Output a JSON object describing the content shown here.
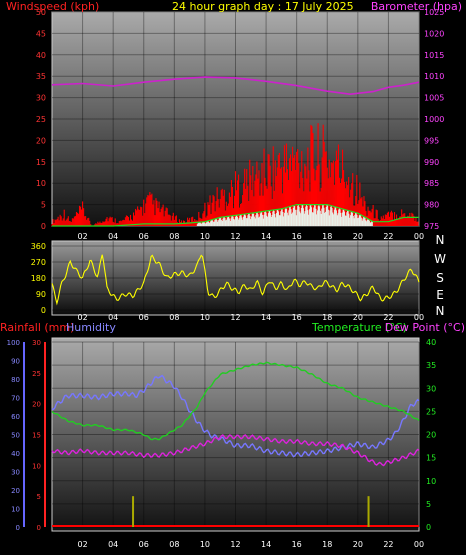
{
  "chart_data": [
    {
      "type": "line",
      "title": "24 hour graph day : 17 July 2025",
      "ylabel_left": "Windspeed (kph)",
      "ylabel_right": "Barometer (hpa)",
      "ylim_left": [
        0,
        50
      ],
      "ylim_right": [
        975,
        1025
      ],
      "yticks_left": [
        "0",
        "5",
        "10",
        "15",
        "20",
        "25",
        "30",
        "35",
        "40",
        "45",
        "50"
      ],
      "yticks_right": [
        "975",
        "980",
        "985",
        "990",
        "995",
        "1000",
        "1005",
        "1010",
        "1015",
        "1020",
        "1025"
      ],
      "xticks": [
        "02",
        "04",
        "06",
        "08",
        "10",
        "12",
        "14",
        "16",
        "18",
        "20",
        "22",
        "00"
      ],
      "colors": {
        "wind_gust": "#ff0000",
        "wind_avg": "#22dd22",
        "wind_bar": "#e8f0e8",
        "barometer": "#cc22cc"
      },
      "series": [
        {
          "key": "barometer",
          "axis": "right",
          "x": [
            0,
            2,
            4,
            6,
            8,
            10,
            12,
            14,
            16,
            18,
            19.5,
            21,
            22,
            23,
            24
          ],
          "values": [
            1008,
            1008.3,
            1007.7,
            1008.6,
            1009.3,
            1009.8,
            1009.6,
            1008.8,
            1007.8,
            1006.5,
            1005.8,
            1006.4,
            1007.4,
            1007.9,
            1008.6
          ]
        },
        {
          "key": "wind_gust",
          "axis": "left",
          "x": [
            0,
            0.8,
            1.2,
            2,
            2.6,
            3.6,
            4.5,
            5.5,
            6.3,
            7.5,
            8.5,
            9.5,
            10.5,
            11.5,
            12.5,
            13.5,
            14.5,
            15.5,
            16.5,
            17.5,
            18.5,
            19.5,
            20.5,
            21.5,
            22.5,
            23.5,
            24
          ],
          "values": [
            1,
            3,
            1,
            4,
            0,
            2,
            1,
            3,
            6,
            3,
            1,
            2,
            6,
            8,
            10,
            12,
            14,
            15,
            16,
            17,
            15,
            12,
            5,
            2,
            3,
            3,
            1
          ]
        },
        {
          "key": "wind_avg",
          "axis": "left",
          "x": [
            0,
            2,
            4,
            6,
            8,
            9,
            10,
            11,
            12,
            13,
            14,
            15,
            16,
            17,
            18,
            19,
            20,
            21,
            22,
            23,
            24
          ],
          "values": [
            0,
            0,
            0,
            0.5,
            0.5,
            0.7,
            1,
            2,
            2.5,
            3,
            3.5,
            4,
            5,
            5,
            5,
            4,
            3,
            1,
            1,
            2,
            2
          ]
        }
      ]
    },
    {
      "type": "line",
      "ylim": [
        0,
        360
      ],
      "yticks": [
        "0",
        "90",
        "180",
        "270",
        "360"
      ],
      "direction_labels": [
        "N",
        "W",
        "S",
        "E",
        "N"
      ],
      "xticks": [
        "02",
        "04",
        "06",
        "08",
        "10",
        "12",
        "14",
        "16",
        "18",
        "20",
        "22",
        "00"
      ],
      "colors": {
        "wind_dir": "#ffff00"
      },
      "series": [
        {
          "key": "wind_dir",
          "x": [
            0,
            0.3,
            0.6,
            0.9,
            1.2,
            1.6,
            2,
            2.5,
            3,
            3.3,
            3.6,
            4.2,
            4.8,
            5.3,
            6,
            6.5,
            7,
            7.5,
            8,
            8.5,
            9,
            9.5,
            9.8,
            10.2,
            10.6,
            11,
            11.4,
            11.8,
            12.2,
            12.6,
            13,
            13.4,
            13.8,
            14.2,
            14.6,
            15,
            15.4,
            15.8,
            16.2,
            16.6,
            17,
            17.4,
            17.8,
            18.2,
            18.6,
            19,
            19.4,
            19.8,
            20.2,
            20.6,
            21,
            21.5,
            22,
            22.5,
            23,
            23.5,
            24
          ],
          "values": [
            150,
            40,
            140,
            200,
            270,
            220,
            180,
            280,
            180,
            330,
            120,
            60,
            90,
            80,
            150,
            300,
            260,
            180,
            200,
            210,
            190,
            250,
            330,
            100,
            70,
            110,
            150,
            120,
            100,
            140,
            110,
            160,
            90,
            170,
            120,
            150,
            110,
            170,
            140,
            160,
            130,
            120,
            160,
            140,
            110,
            150,
            130,
            100,
            60,
            90,
            130,
            60,
            70,
            100,
            170,
            230,
            160
          ]
        }
      ]
    },
    {
      "type": "line",
      "ylabel_left_1": "Rainfall (mm)",
      "ylabel_left_2": "Humidity",
      "ylabel_right_1": "Temperature (°C)",
      "ylabel_right_2": "Dew Point (°C)",
      "ylim_humidity": [
        0,
        100
      ],
      "ylim_rain": [
        0,
        30
      ],
      "ylim_temp": [
        0,
        40
      ],
      "yticks_humidity": [
        "0",
        "10",
        "20",
        "30",
        "40",
        "50",
        "60",
        "70",
        "80",
        "90",
        "100"
      ],
      "yticks_rain": [
        "0",
        "5",
        "10",
        "15",
        "20",
        "25",
        "30"
      ],
      "yticks_temp": [
        "0",
        "5",
        "10",
        "15",
        "20",
        "25",
        "30",
        "35",
        "40"
      ],
      "xticks": [
        "02",
        "04",
        "06",
        "08",
        "10",
        "12",
        "14",
        "16",
        "18",
        "20",
        "22",
        "00"
      ],
      "colors": {
        "rain": "#ff0000",
        "humidity": "#7777ff",
        "temperature": "#22cc22",
        "dewpoint": "#dd22dd",
        "rain_marker": "#aaaa00"
      },
      "series": [
        {
          "key": "humidity",
          "x": [
            0,
            1,
            2,
            3,
            4,
            5,
            5.5,
            6,
            6.5,
            7,
            7.5,
            8,
            8.5,
            9,
            9.5,
            10,
            10.5,
            11,
            12,
            13,
            14,
            15,
            16,
            17,
            18,
            19,
            20,
            21,
            22,
            22.5,
            23,
            23.5,
            24
          ],
          "values": [
            64,
            71,
            71,
            70,
            72,
            72,
            71,
            74,
            78,
            82,
            79,
            76,
            70,
            63,
            57,
            52,
            49,
            48,
            44,
            44,
            41,
            40,
            39,
            40,
            41,
            43,
            45,
            43,
            47,
            51,
            58,
            66,
            68
          ]
        },
        {
          "key": "temperature",
          "x": [
            0,
            1,
            2,
            3,
            4,
            5,
            6,
            6.5,
            7,
            7.5,
            8,
            8.5,
            9,
            9.5,
            10,
            10.5,
            11,
            12,
            13,
            14,
            15,
            16,
            17,
            18,
            19,
            20,
            21,
            22,
            23,
            24
          ],
          "values": [
            25,
            23,
            22,
            22,
            21,
            21,
            20,
            19,
            19,
            20,
            21,
            22,
            24,
            26,
            29,
            31,
            33,
            34,
            35,
            35.5,
            35,
            34.5,
            33,
            31,
            30,
            28,
            27,
            26,
            25,
            23
          ]
        },
        {
          "key": "dewpoint",
          "x": [
            0,
            1,
            2,
            3,
            4,
            5,
            6,
            7,
            8,
            9,
            10,
            11,
            12,
            13,
            14,
            15,
            16,
            17,
            18,
            19,
            20,
            21,
            21.5,
            22,
            23,
            24
          ],
          "values": [
            16.5,
            16,
            16.5,
            16,
            16,
            16,
            15.5,
            15.5,
            16,
            17,
            18,
            19.5,
            19.5,
            19.5,
            19,
            18.5,
            18.5,
            18,
            18,
            17.5,
            16,
            14,
            13.5,
            14,
            15,
            16.5
          ]
        },
        {
          "key": "rain_marker",
          "x": [
            5.3,
            20.7
          ],
          "values": [
            5,
            5
          ]
        }
      ]
    }
  ]
}
